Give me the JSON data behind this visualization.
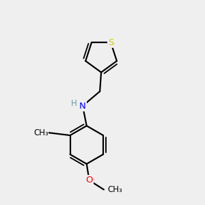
{
  "background_color": "#efefef",
  "atom_colors": {
    "C": "#000000",
    "H": "#6699aa",
    "N": "#0000ff",
    "O": "#ff0000",
    "S": "#cccc00"
  },
  "bond_color": "#000000",
  "bond_width": 1.6,
  "font_size_atom": 9.5,
  "font_size_label": 9.0,
  "xlim": [
    -0.5,
    4.5
  ],
  "ylim": [
    -3.8,
    3.8
  ]
}
